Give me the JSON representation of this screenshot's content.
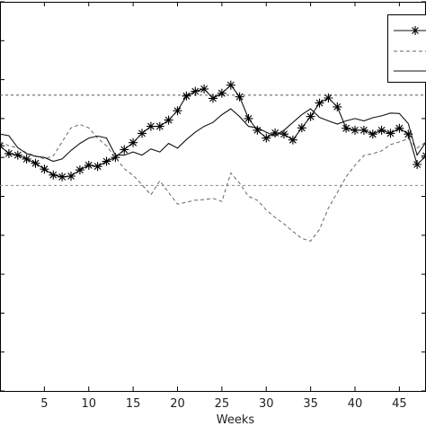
{
  "chart_data": {
    "type": "line",
    "xlabel": "Weeks",
    "xlim": [
      0,
      48
    ],
    "ylim": [
      0,
      1
    ],
    "x_ticks": [
      5,
      10,
      15,
      20,
      25,
      30,
      35,
      40,
      45
    ],
    "grid": false,
    "legend_placement": "top-right",
    "reference_lines": [
      {
        "style": "dashed",
        "y": 0.76
      },
      {
        "style": "dashed",
        "y": 0.528
      }
    ],
    "series": [
      {
        "style": "solid-with-star-markers",
        "x": [
          0,
          1,
          2,
          3,
          4,
          5,
          6,
          7,
          8,
          9,
          10,
          11,
          12,
          13,
          14,
          15,
          16,
          17,
          18,
          19,
          20,
          21,
          22,
          23,
          24,
          25,
          26,
          27,
          28,
          29,
          30,
          31,
          32,
          33,
          34,
          35,
          36,
          37,
          38,
          39,
          40,
          41,
          42,
          43,
          44,
          45,
          46,
          47,
          48
        ],
        "y": [
          0.63,
          0.61,
          0.606,
          0.596,
          0.585,
          0.57,
          0.555,
          0.55,
          0.552,
          0.568,
          0.58,
          0.577,
          0.59,
          0.6,
          0.62,
          0.638,
          0.662,
          0.68,
          0.68,
          0.696,
          0.72,
          0.758,
          0.77,
          0.776,
          0.752,
          0.765,
          0.786,
          0.756,
          0.7,
          0.67,
          0.65,
          0.663,
          0.66,
          0.645,
          0.676,
          0.705,
          0.74,
          0.753,
          0.73,
          0.675,
          0.67,
          0.67,
          0.66,
          0.67,
          0.662,
          0.675,
          0.66,
          0.582,
          0.604
        ]
      },
      {
        "style": "dashed",
        "x": [
          0,
          1,
          2,
          3,
          4,
          5,
          6,
          7,
          8,
          9,
          10,
          11,
          12,
          13,
          14,
          15,
          16,
          17,
          18,
          19,
          20,
          21,
          22,
          23,
          24,
          25,
          26,
          27,
          28,
          29,
          30,
          31,
          32,
          33,
          34,
          35,
          36,
          37,
          38,
          39,
          40,
          41,
          42,
          43,
          44,
          45,
          46,
          47,
          48
        ],
        "y": [
          0.64,
          0.63,
          0.625,
          0.612,
          0.604,
          0.596,
          0.604,
          0.64,
          0.676,
          0.685,
          0.676,
          0.65,
          0.63,
          0.6,
          0.571,
          0.554,
          0.53,
          0.504,
          0.54,
          0.51,
          0.48,
          0.485,
          0.49,
          0.492,
          0.495,
          0.487,
          0.56,
          0.534,
          0.5,
          0.49,
          0.465,
          0.446,
          0.429,
          0.41,
          0.392,
          0.385,
          0.415,
          0.47,
          0.51,
          0.55,
          0.58,
          0.605,
          0.61,
          0.617,
          0.633,
          0.64,
          0.648,
          0.624,
          0.64
        ]
      },
      {
        "style": "solid",
        "x": [
          0,
          1,
          2,
          3,
          4,
          5,
          6,
          7,
          8,
          9,
          10,
          11,
          12,
          13,
          14,
          15,
          16,
          17,
          18,
          19,
          20,
          21,
          22,
          23,
          24,
          25,
          26,
          27,
          28,
          29,
          30,
          31,
          32,
          33,
          34,
          35,
          36,
          37,
          38,
          39,
          40,
          41,
          42,
          43,
          44,
          45,
          46,
          47,
          48
        ],
        "y": [
          0.66,
          0.656,
          0.625,
          0.61,
          0.603,
          0.6,
          0.59,
          0.596,
          0.618,
          0.636,
          0.65,
          0.655,
          0.65,
          0.606,
          0.606,
          0.614,
          0.606,
          0.622,
          0.614,
          0.636,
          0.624,
          0.646,
          0.665,
          0.68,
          0.69,
          0.71,
          0.725,
          0.705,
          0.68,
          0.676,
          0.665,
          0.655,
          0.67,
          0.69,
          0.71,
          0.725,
          0.703,
          0.694,
          0.686,
          0.694,
          0.7,
          0.694,
          0.702,
          0.707,
          0.714,
          0.713,
          0.687,
          0.606,
          0.64
        ]
      }
    ]
  }
}
